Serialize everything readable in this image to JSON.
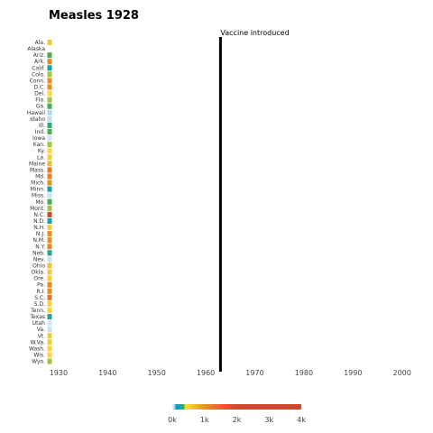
{
  "chart_data": {
    "type": "heatmap",
    "title": "Measles 1928",
    "annotation": "Vaccine introduced",
    "annotation_year": 1963,
    "year": 1928,
    "x_ticks": [
      "1930",
      "1940",
      "1950",
      "1960",
      "1970",
      "1980",
      "1990",
      "2000"
    ],
    "xlim": [
      1928,
      2003
    ],
    "states": [
      "Ala.",
      "Alaska",
      "Ariz.",
      "Ark.",
      "Calif.",
      "Colo.",
      "Conn.",
      "D.C.",
      "Del.",
      "Fla.",
      "Ga.",
      "Hawaii",
      "Idaho",
      "Ill.",
      "Ind.",
      "Iowa",
      "Kan.",
      "Ky.",
      "La.",
      "Maine",
      "Mass.",
      "Md.",
      "Mich.",
      "Minn.",
      "Miss.",
      "Mo.",
      "Mont.",
      "N.C.",
      "N.D.",
      "N.H.",
      "N.J.",
      "N.M.",
      "N.Y.",
      "Neb.",
      "Nev.",
      "Ohio",
      "Okla.",
      "Ore.",
      "Pa.",
      "R.I.",
      "S.C.",
      "S.D.",
      "Tenn.",
      "Texas",
      "Utah",
      "Va.",
      "Vt.",
      "W.Va.",
      "Wash.",
      "Wis.",
      "Wyo."
    ],
    "values": [
      600,
      null,
      350,
      1100,
      200,
      380,
      1050,
      1000,
      420,
      380,
      350,
      60,
      50,
      280,
      350,
      30,
      380,
      420,
      500,
      700,
      1250,
      1200,
      1050,
      200,
      40,
      350,
      380,
      3300,
      200,
      520,
      1050,
      1050,
      1100,
      250,
      40,
      620,
      550,
      500,
      1100,
      1050,
      1300,
      480,
      450,
      250,
      30,
      40,
      580,
      550,
      450,
      420,
      380
    ],
    "colorbar": {
      "ticks": [
        "0k",
        "1k",
        "2k",
        "3k",
        "4k"
      ],
      "range": [
        0,
        4000
      ],
      "colors": [
        "#e7f0fa",
        "#c9e2f6",
        "#95cbee",
        "#0099dc",
        "#4ab04a",
        "#ffd73e",
        "#eec73a",
        "#e29421",
        "#f05336",
        "#ce472e"
      ],
      "stops": [
        0,
        0.01,
        0.02,
        0.03,
        0.09,
        0.1,
        0.15,
        0.25,
        0.4,
        0.5
      ]
    }
  }
}
